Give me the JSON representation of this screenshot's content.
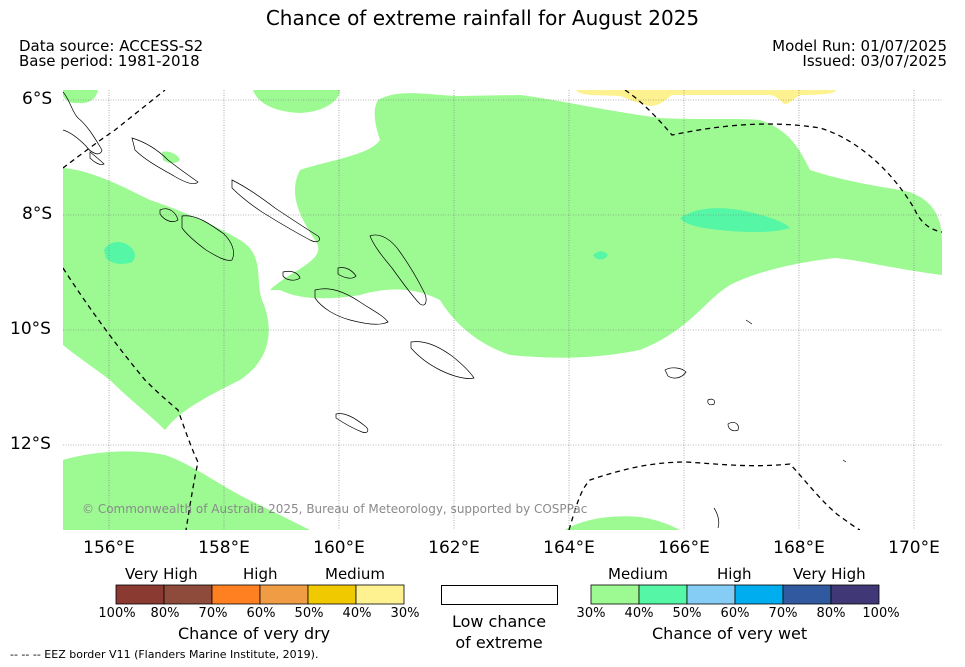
{
  "title": "Chance of extreme rainfall for August 2025",
  "data_source": "Data source: ACCESS-S2",
  "base_period": "Base period: 1981-2018",
  "model_run": "Model Run: 01/07/2025",
  "issued": "Issued: 03/07/2025",
  "lat_labels": [
    "6°S",
    "8°S",
    "10°S",
    "12°S"
  ],
  "lon_labels": [
    "156°E",
    "158°E",
    "160°E",
    "162°E",
    "164°E",
    "166°E",
    "168°E",
    "170°E"
  ],
  "copyright": "© Commonwealth of Australia 2025, Bureau of Meteorology, supported by COSPPac",
  "footer": "-- -- -- EEZ border V11 (Flanders Marine Institute, 2019).",
  "legend": {
    "dry": {
      "headers": [
        "Very High",
        "High",
        "Medium"
      ],
      "ticks": [
        "100%",
        "80%",
        "70%",
        "60%",
        "50%",
        "40%",
        "30%"
      ],
      "colors": [
        "#8b3a32",
        "#8e4a3a",
        "#ff8020",
        "#ef9c45",
        "#f1c900",
        "#fdf28f"
      ],
      "label": "Chance of very dry"
    },
    "low": {
      "line1": "Low chance",
      "line2": "of extreme",
      "color": "#ffffff"
    },
    "wet": {
      "headers": [
        "Medium",
        "High",
        "Very High"
      ],
      "ticks": [
        "30%",
        "40%",
        "50%",
        "60%",
        "70%",
        "80%",
        "100%"
      ],
      "colors": [
        "#9dfa93",
        "#55f6a5",
        "#86cdf6",
        "#00aef0",
        "#30599f",
        "#3f3776"
      ],
      "label": "Chance of very wet"
    }
  }
}
